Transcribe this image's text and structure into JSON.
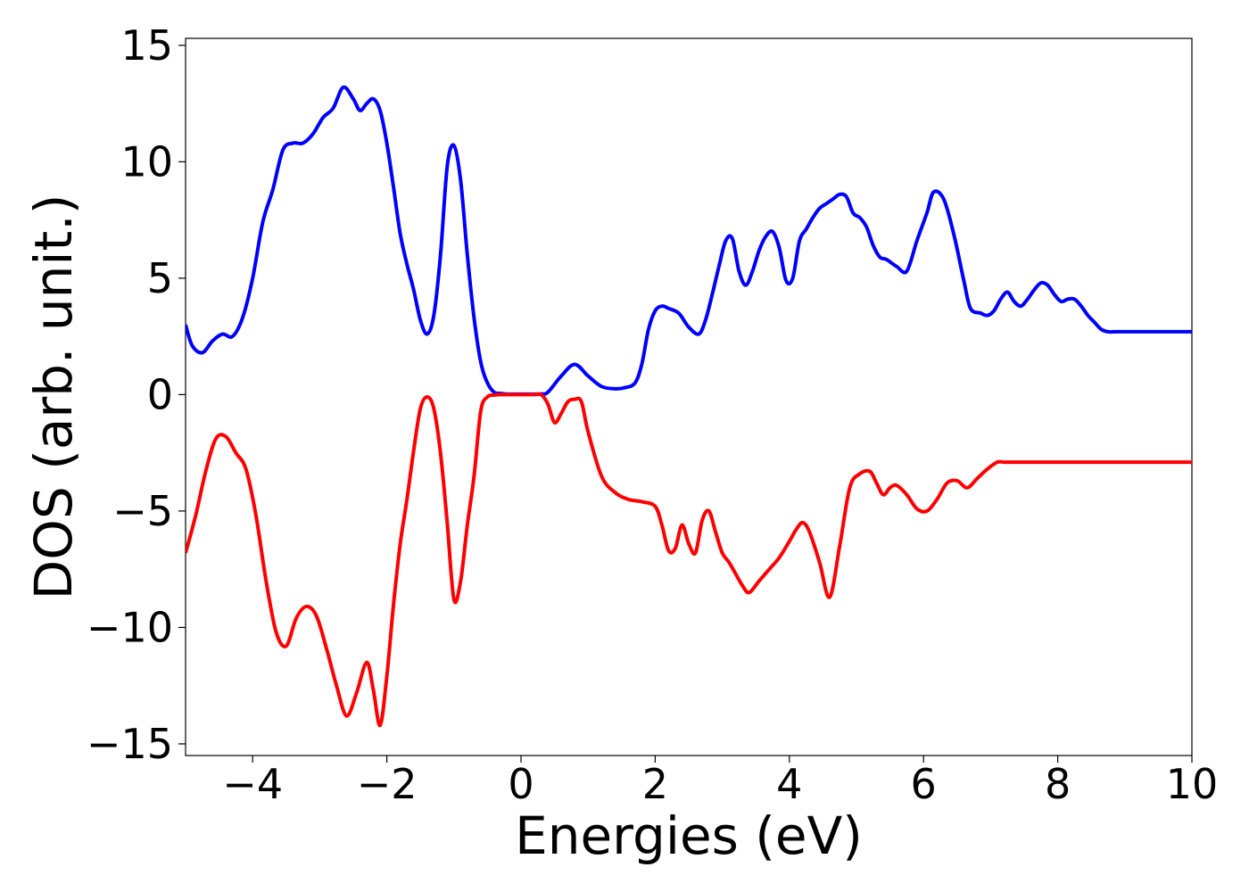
{
  "chart_data": {
    "type": "line",
    "title": "",
    "xlabel": "Energies (eV)",
    "ylabel": "DOS (arb. unit.)",
    "xlim": [
      -5,
      10
    ],
    "ylim": [
      -15.5,
      15.3
    ],
    "x_ticks": [
      -4,
      -2,
      0,
      2,
      4,
      6,
      8,
      10
    ],
    "x_tick_labels": [
      "−4",
      "−2",
      "0",
      "2",
      "4",
      "6",
      "8",
      "10"
    ],
    "y_ticks": [
      15,
      10,
      5,
      0,
      -5,
      -10,
      -15
    ],
    "y_tick_labels": [
      "15",
      "10",
      "5",
      "0",
      "−5",
      "−10",
      "−15"
    ],
    "grid": false,
    "legend": "none",
    "series": [
      {
        "color": "#0000ff",
        "x": [
          -5.0,
          -4.9,
          -4.75,
          -4.6,
          -4.45,
          -4.3,
          -4.15,
          -4.0,
          -3.85,
          -3.7,
          -3.55,
          -3.4,
          -3.25,
          -3.1,
          -2.95,
          -2.8,
          -2.65,
          -2.5,
          -2.4,
          -2.3,
          -2.2,
          -2.1,
          -2.0,
          -1.9,
          -1.8,
          -1.7,
          -1.6,
          -1.5,
          -1.4,
          -1.3,
          -1.2,
          -1.1,
          -1.0,
          -0.9,
          -0.8,
          -0.7,
          -0.6,
          -0.5,
          -0.4,
          -0.3,
          -0.2,
          -0.1,
          0.0,
          0.1,
          0.2,
          0.3,
          0.4,
          0.6,
          0.8,
          1.0,
          1.2,
          1.4,
          1.55,
          1.7,
          1.8,
          1.9,
          2.0,
          2.1,
          2.2,
          2.35,
          2.5,
          2.65,
          2.75,
          2.85,
          2.95,
          3.05,
          3.15,
          3.25,
          3.35,
          3.45,
          3.55,
          3.65,
          3.75,
          3.85,
          3.95,
          4.05,
          4.15,
          4.25,
          4.35,
          4.45,
          4.55,
          4.65,
          4.75,
          4.85,
          4.95,
          5.05,
          5.15,
          5.25,
          5.35,
          5.45,
          5.6,
          5.75,
          5.9,
          6.05,
          6.15,
          6.3,
          6.45,
          6.6,
          6.7,
          6.85,
          6.95,
          7.05,
          7.15,
          7.25,
          7.35,
          7.45,
          7.55,
          7.65,
          7.75,
          7.85,
          7.95,
          8.05,
          8.15,
          8.25,
          8.35,
          8.45,
          8.55,
          8.65,
          8.75,
          8.85,
          8.95,
          9.05,
          9.2,
          9.35,
          9.5,
          9.65,
          9.8,
          10.0
        ],
        "y": [
          3.0,
          2.1,
          1.8,
          2.3,
          2.6,
          2.5,
          3.3,
          5.0,
          7.4,
          8.8,
          10.5,
          10.8,
          10.8,
          11.2,
          11.9,
          12.3,
          13.2,
          12.7,
          12.2,
          12.5,
          12.7,
          12.2,
          10.8,
          8.9,
          6.9,
          5.6,
          4.5,
          3.2,
          2.6,
          3.4,
          6.0,
          9.8,
          10.7,
          9.2,
          6.0,
          3.3,
          1.4,
          0.5,
          0.1,
          0.05,
          0.02,
          0.02,
          0.02,
          0.02,
          0.02,
          0.03,
          0.1,
          0.8,
          1.3,
          0.8,
          0.35,
          0.25,
          0.3,
          0.5,
          1.3,
          2.8,
          3.6,
          3.8,
          3.7,
          3.5,
          2.9,
          2.6,
          3.2,
          4.3,
          5.5,
          6.6,
          6.7,
          5.3,
          4.7,
          5.3,
          6.2,
          6.8,
          7.0,
          6.3,
          4.9,
          5.0,
          6.6,
          7.1,
          7.6,
          8.0,
          8.2,
          8.4,
          8.6,
          8.5,
          7.8,
          7.6,
          7.2,
          6.4,
          5.9,
          5.8,
          5.5,
          5.3,
          6.6,
          7.8,
          8.7,
          8.4,
          6.9,
          4.9,
          3.7,
          3.5,
          3.4,
          3.6,
          4.1,
          4.4,
          4.0,
          3.8,
          4.1,
          4.5,
          4.8,
          4.7,
          4.3,
          4.0,
          4.1,
          4.1,
          3.8,
          3.4,
          3.1,
          2.8,
          2.7,
          2.7,
          2.7,
          2.7,
          2.7,
          2.7,
          2.7,
          2.7,
          2.7,
          2.7
        ]
      },
      {
        "color": "#ff0000",
        "x": [
          -5.0,
          -4.85,
          -4.7,
          -4.55,
          -4.4,
          -4.25,
          -4.1,
          -3.95,
          -3.8,
          -3.65,
          -3.5,
          -3.35,
          -3.2,
          -3.05,
          -2.9,
          -2.75,
          -2.6,
          -2.45,
          -2.3,
          -2.2,
          -2.1,
          -2.0,
          -1.9,
          -1.8,
          -1.7,
          -1.6,
          -1.5,
          -1.4,
          -1.3,
          -1.2,
          -1.1,
          -1.0,
          -0.9,
          -0.8,
          -0.7,
          -0.6,
          -0.5,
          -0.4,
          -0.3,
          -0.2,
          -0.1,
          0.0,
          0.1,
          0.2,
          0.3,
          0.4,
          0.5,
          0.6,
          0.7,
          0.8,
          0.9,
          1.0,
          1.2,
          1.4,
          1.6,
          1.8,
          2.0,
          2.1,
          2.2,
          2.3,
          2.4,
          2.5,
          2.6,
          2.7,
          2.8,
          2.9,
          3.0,
          3.1,
          3.2,
          3.3,
          3.4,
          3.55,
          3.7,
          3.85,
          4.0,
          4.1,
          4.2,
          4.3,
          4.45,
          4.6,
          4.75,
          4.9,
          5.05,
          5.2,
          5.3,
          5.4,
          5.5,
          5.6,
          5.75,
          5.9,
          6.05,
          6.2,
          6.35,
          6.5,
          6.65,
          6.8,
          6.95,
          7.1,
          7.2,
          7.3,
          7.4,
          7.5,
          7.6,
          7.7,
          7.8,
          7.9,
          8.0,
          8.1,
          8.2,
          8.35,
          8.5,
          8.6,
          8.7,
          8.8,
          8.9,
          9.0,
          9.1,
          9.2,
          9.3,
          9.4,
          9.55,
          9.7,
          9.85,
          10.0
        ],
        "y": [
          -6.8,
          -5.2,
          -3.3,
          -1.9,
          -1.8,
          -2.5,
          -3.2,
          -5.2,
          -8.0,
          -10.2,
          -10.8,
          -9.6,
          -9.1,
          -9.5,
          -10.9,
          -12.5,
          -13.8,
          -12.8,
          -11.5,
          -12.7,
          -14.2,
          -12.1,
          -9.0,
          -6.4,
          -4.5,
          -2.4,
          -0.6,
          -0.1,
          -0.6,
          -2.5,
          -5.5,
          -8.8,
          -8.0,
          -5.6,
          -3.5,
          -0.7,
          -0.1,
          -0.02,
          0.0,
          0.0,
          0.0,
          0.0,
          0.0,
          0.0,
          0.0,
          -0.4,
          -1.2,
          -0.8,
          -0.3,
          -0.2,
          -0.3,
          -1.6,
          -3.5,
          -4.2,
          -4.5,
          -4.6,
          -4.8,
          -5.6,
          -6.7,
          -6.6,
          -5.6,
          -6.4,
          -6.8,
          -5.4,
          -5.0,
          -5.9,
          -6.8,
          -7.2,
          -7.7,
          -8.2,
          -8.5,
          -8.0,
          -7.5,
          -7.0,
          -6.3,
          -5.8,
          -5.5,
          -5.9,
          -7.2,
          -8.7,
          -6.5,
          -4.0,
          -3.4,
          -3.3,
          -3.8,
          -4.3,
          -4.0,
          -3.9,
          -4.3,
          -4.9,
          -5.0,
          -4.5,
          -3.8,
          -3.7,
          -4.0,
          -3.6,
          -3.2,
          -2.9,
          -2.9,
          -2.9,
          -2.9,
          -2.9,
          -2.9,
          -2.9,
          -2.9,
          -2.9,
          -2.9,
          -2.9,
          -2.9,
          -2.9,
          -2.9,
          -2.9,
          -2.9,
          -2.9,
          -2.9,
          -2.9,
          -2.9,
          -2.9,
          -2.9,
          -2.9,
          -2.9,
          -2.9,
          -2.9,
          -2.9
        ]
      }
    ]
  }
}
